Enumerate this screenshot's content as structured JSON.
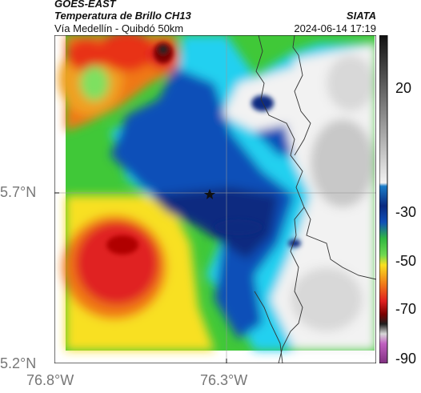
{
  "header": {
    "satellite": "GOES-EAST",
    "product": "Temperatura de Brillo CH13",
    "agency": "SIATA",
    "region": "Vía Medellín - Quibdó 50km",
    "datetime": "2024-06-14 17:19"
  },
  "map": {
    "lat_labels": [
      "5.7°N",
      "5.2°N"
    ],
    "lon_labels": [
      "76.8°W",
      "76.3°W"
    ],
    "marker": "star",
    "colors": {
      "red": "#e02020",
      "darkred": "#7a0000",
      "orange": "#f07818",
      "yellow": "#f8e020",
      "green": "#40c838",
      "lightgreen": "#7ee060",
      "blue": "#1050b8",
      "navy": "#0a2a80",
      "cyan": "#20d0f0",
      "white": "#f2f2f2",
      "grey": "#c8c8c8"
    }
  },
  "colorbar": {
    "labels": [
      "20",
      "-30",
      "-50",
      "-70",
      "-90"
    ]
  }
}
